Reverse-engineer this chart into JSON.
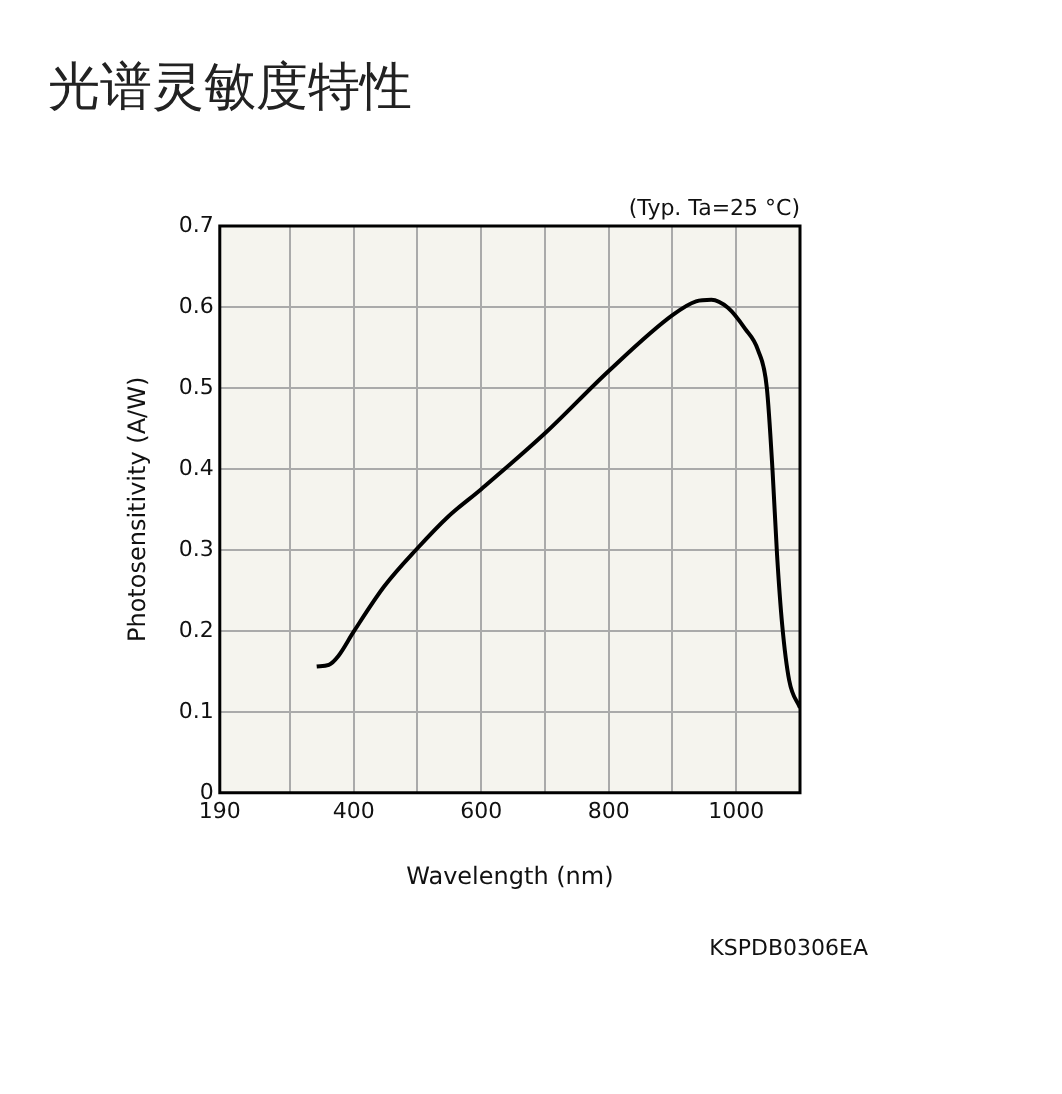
{
  "chart_data": {
    "type": "line",
    "title": "光谱灵敏度特性",
    "xlabel": "Wavelength (nm)",
    "ylabel": "Photosensitivity (A/W)",
    "annotations": [
      "(Typ. Ta=25 °C)",
      "KSPDB0306EA"
    ],
    "series": [
      {
        "color": "#000000",
        "x": [
          342,
          361,
          376,
          400,
          448,
          500,
          548,
          600,
          700,
          800,
          900,
          937,
          961,
          987,
          1014,
          1034,
          1048,
          1057,
          1064,
          1072,
          1083,
          1100
        ],
        "values": [
          0.156,
          0.158,
          0.169,
          0.199,
          0.255,
          0.302,
          0.341,
          0.375,
          0.444,
          0.521,
          0.59,
          0.607,
          0.609,
          0.599,
          0.573,
          0.547,
          0.5,
          0.397,
          0.294,
          0.208,
          0.139,
          0.105
        ]
      }
    ],
    "xlim": [
      190,
      1100
    ],
    "xticks": [
      190,
      {
        "value": 300,
        "label": null
      },
      400,
      {
        "value": 500,
        "label": null
      },
      600,
      {
        "value": 700,
        "label": null
      },
      800,
      {
        "value": 900,
        "label": null
      },
      1000,
      {
        "value": 1100,
        "label": null
      }
    ],
    "ylim": [
      0,
      0.7
    ],
    "yticks": [
      0,
      0.1,
      0.2,
      0.3,
      0.4,
      0.5,
      0.6,
      0.7
    ],
    "grid": true,
    "legend": false,
    "marker": "none",
    "line_style": "solid"
  }
}
